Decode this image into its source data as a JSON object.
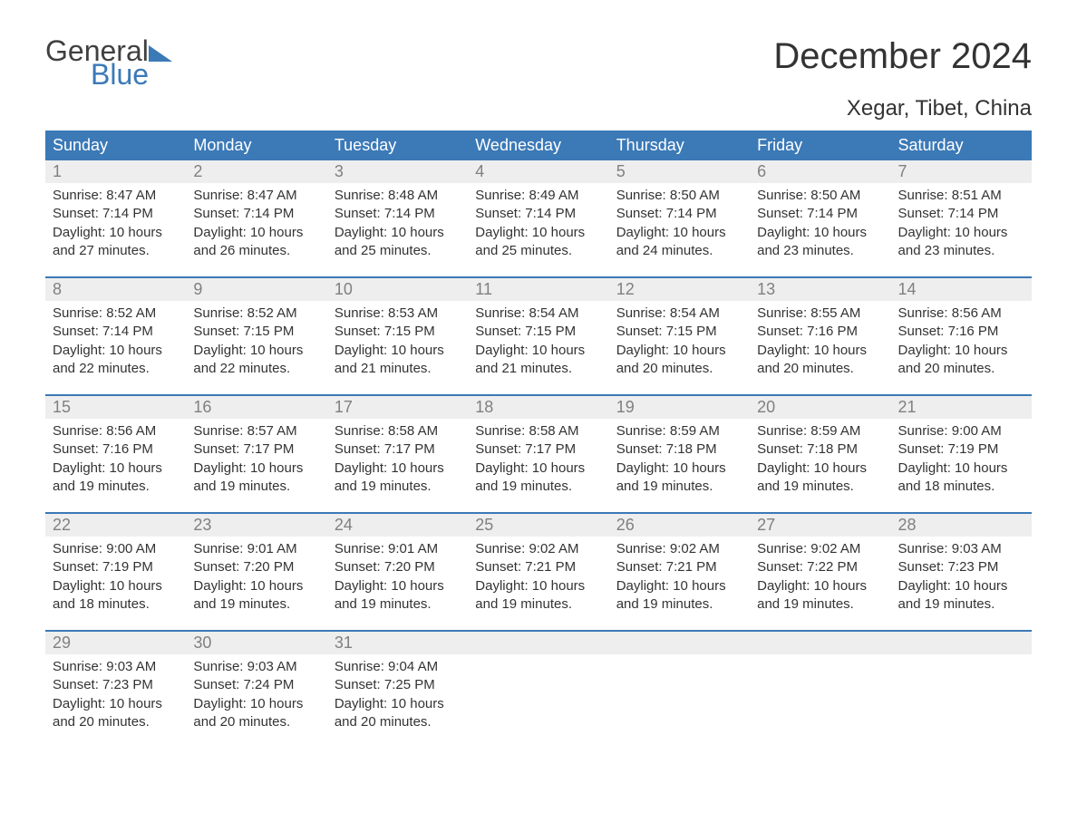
{
  "brand": {
    "line1": "General",
    "line2": "Blue"
  },
  "title": "December 2024",
  "location": "Xegar, Tibet, China",
  "colors": {
    "header_bg": "#3b79b7",
    "header_text": "#ffffff",
    "daynum_bg": "#eeeeee",
    "daynum_text": "#808080",
    "body_text": "#333333",
    "week_divider": "#3b79b7",
    "page_bg": "#ffffff"
  },
  "day_headers": [
    "Sunday",
    "Monday",
    "Tuesday",
    "Wednesday",
    "Thursday",
    "Friday",
    "Saturday"
  ],
  "weeks": [
    {
      "days": [
        {
          "num": "1",
          "sunrise": "Sunrise: 8:47 AM",
          "sunset": "Sunset: 7:14 PM",
          "daylight1": "Daylight: 10 hours",
          "daylight2": "and 27 minutes."
        },
        {
          "num": "2",
          "sunrise": "Sunrise: 8:47 AM",
          "sunset": "Sunset: 7:14 PM",
          "daylight1": "Daylight: 10 hours",
          "daylight2": "and 26 minutes."
        },
        {
          "num": "3",
          "sunrise": "Sunrise: 8:48 AM",
          "sunset": "Sunset: 7:14 PM",
          "daylight1": "Daylight: 10 hours",
          "daylight2": "and 25 minutes."
        },
        {
          "num": "4",
          "sunrise": "Sunrise: 8:49 AM",
          "sunset": "Sunset: 7:14 PM",
          "daylight1": "Daylight: 10 hours",
          "daylight2": "and 25 minutes."
        },
        {
          "num": "5",
          "sunrise": "Sunrise: 8:50 AM",
          "sunset": "Sunset: 7:14 PM",
          "daylight1": "Daylight: 10 hours",
          "daylight2": "and 24 minutes."
        },
        {
          "num": "6",
          "sunrise": "Sunrise: 8:50 AM",
          "sunset": "Sunset: 7:14 PM",
          "daylight1": "Daylight: 10 hours",
          "daylight2": "and 23 minutes."
        },
        {
          "num": "7",
          "sunrise": "Sunrise: 8:51 AM",
          "sunset": "Sunset: 7:14 PM",
          "daylight1": "Daylight: 10 hours",
          "daylight2": "and 23 minutes."
        }
      ]
    },
    {
      "days": [
        {
          "num": "8",
          "sunrise": "Sunrise: 8:52 AM",
          "sunset": "Sunset: 7:14 PM",
          "daylight1": "Daylight: 10 hours",
          "daylight2": "and 22 minutes."
        },
        {
          "num": "9",
          "sunrise": "Sunrise: 8:52 AM",
          "sunset": "Sunset: 7:15 PM",
          "daylight1": "Daylight: 10 hours",
          "daylight2": "and 22 minutes."
        },
        {
          "num": "10",
          "sunrise": "Sunrise: 8:53 AM",
          "sunset": "Sunset: 7:15 PM",
          "daylight1": "Daylight: 10 hours",
          "daylight2": "and 21 minutes."
        },
        {
          "num": "11",
          "sunrise": "Sunrise: 8:54 AM",
          "sunset": "Sunset: 7:15 PM",
          "daylight1": "Daylight: 10 hours",
          "daylight2": "and 21 minutes."
        },
        {
          "num": "12",
          "sunrise": "Sunrise: 8:54 AM",
          "sunset": "Sunset: 7:15 PM",
          "daylight1": "Daylight: 10 hours",
          "daylight2": "and 20 minutes."
        },
        {
          "num": "13",
          "sunrise": "Sunrise: 8:55 AM",
          "sunset": "Sunset: 7:16 PM",
          "daylight1": "Daylight: 10 hours",
          "daylight2": "and 20 minutes."
        },
        {
          "num": "14",
          "sunrise": "Sunrise: 8:56 AM",
          "sunset": "Sunset: 7:16 PM",
          "daylight1": "Daylight: 10 hours",
          "daylight2": "and 20 minutes."
        }
      ]
    },
    {
      "days": [
        {
          "num": "15",
          "sunrise": "Sunrise: 8:56 AM",
          "sunset": "Sunset: 7:16 PM",
          "daylight1": "Daylight: 10 hours",
          "daylight2": "and 19 minutes."
        },
        {
          "num": "16",
          "sunrise": "Sunrise: 8:57 AM",
          "sunset": "Sunset: 7:17 PM",
          "daylight1": "Daylight: 10 hours",
          "daylight2": "and 19 minutes."
        },
        {
          "num": "17",
          "sunrise": "Sunrise: 8:58 AM",
          "sunset": "Sunset: 7:17 PM",
          "daylight1": "Daylight: 10 hours",
          "daylight2": "and 19 minutes."
        },
        {
          "num": "18",
          "sunrise": "Sunrise: 8:58 AM",
          "sunset": "Sunset: 7:17 PM",
          "daylight1": "Daylight: 10 hours",
          "daylight2": "and 19 minutes."
        },
        {
          "num": "19",
          "sunrise": "Sunrise: 8:59 AM",
          "sunset": "Sunset: 7:18 PM",
          "daylight1": "Daylight: 10 hours",
          "daylight2": "and 19 minutes."
        },
        {
          "num": "20",
          "sunrise": "Sunrise: 8:59 AM",
          "sunset": "Sunset: 7:18 PM",
          "daylight1": "Daylight: 10 hours",
          "daylight2": "and 19 minutes."
        },
        {
          "num": "21",
          "sunrise": "Sunrise: 9:00 AM",
          "sunset": "Sunset: 7:19 PM",
          "daylight1": "Daylight: 10 hours",
          "daylight2": "and 18 minutes."
        }
      ]
    },
    {
      "days": [
        {
          "num": "22",
          "sunrise": "Sunrise: 9:00 AM",
          "sunset": "Sunset: 7:19 PM",
          "daylight1": "Daylight: 10 hours",
          "daylight2": "and 18 minutes."
        },
        {
          "num": "23",
          "sunrise": "Sunrise: 9:01 AM",
          "sunset": "Sunset: 7:20 PM",
          "daylight1": "Daylight: 10 hours",
          "daylight2": "and 19 minutes."
        },
        {
          "num": "24",
          "sunrise": "Sunrise: 9:01 AM",
          "sunset": "Sunset: 7:20 PM",
          "daylight1": "Daylight: 10 hours",
          "daylight2": "and 19 minutes."
        },
        {
          "num": "25",
          "sunrise": "Sunrise: 9:02 AM",
          "sunset": "Sunset: 7:21 PM",
          "daylight1": "Daylight: 10 hours",
          "daylight2": "and 19 minutes."
        },
        {
          "num": "26",
          "sunrise": "Sunrise: 9:02 AM",
          "sunset": "Sunset: 7:21 PM",
          "daylight1": "Daylight: 10 hours",
          "daylight2": "and 19 minutes."
        },
        {
          "num": "27",
          "sunrise": "Sunrise: 9:02 AM",
          "sunset": "Sunset: 7:22 PM",
          "daylight1": "Daylight: 10 hours",
          "daylight2": "and 19 minutes."
        },
        {
          "num": "28",
          "sunrise": "Sunrise: 9:03 AM",
          "sunset": "Sunset: 7:23 PM",
          "daylight1": "Daylight: 10 hours",
          "daylight2": "and 19 minutes."
        }
      ]
    },
    {
      "days": [
        {
          "num": "29",
          "sunrise": "Sunrise: 9:03 AM",
          "sunset": "Sunset: 7:23 PM",
          "daylight1": "Daylight: 10 hours",
          "daylight2": "and 20 minutes."
        },
        {
          "num": "30",
          "sunrise": "Sunrise: 9:03 AM",
          "sunset": "Sunset: 7:24 PM",
          "daylight1": "Daylight: 10 hours",
          "daylight2": "and 20 minutes."
        },
        {
          "num": "31",
          "sunrise": "Sunrise: 9:04 AM",
          "sunset": "Sunset: 7:25 PM",
          "daylight1": "Daylight: 10 hours",
          "daylight2": "and 20 minutes."
        },
        {
          "num": "",
          "empty": true
        },
        {
          "num": "",
          "empty": true
        },
        {
          "num": "",
          "empty": true
        },
        {
          "num": "",
          "empty": true
        }
      ]
    }
  ]
}
